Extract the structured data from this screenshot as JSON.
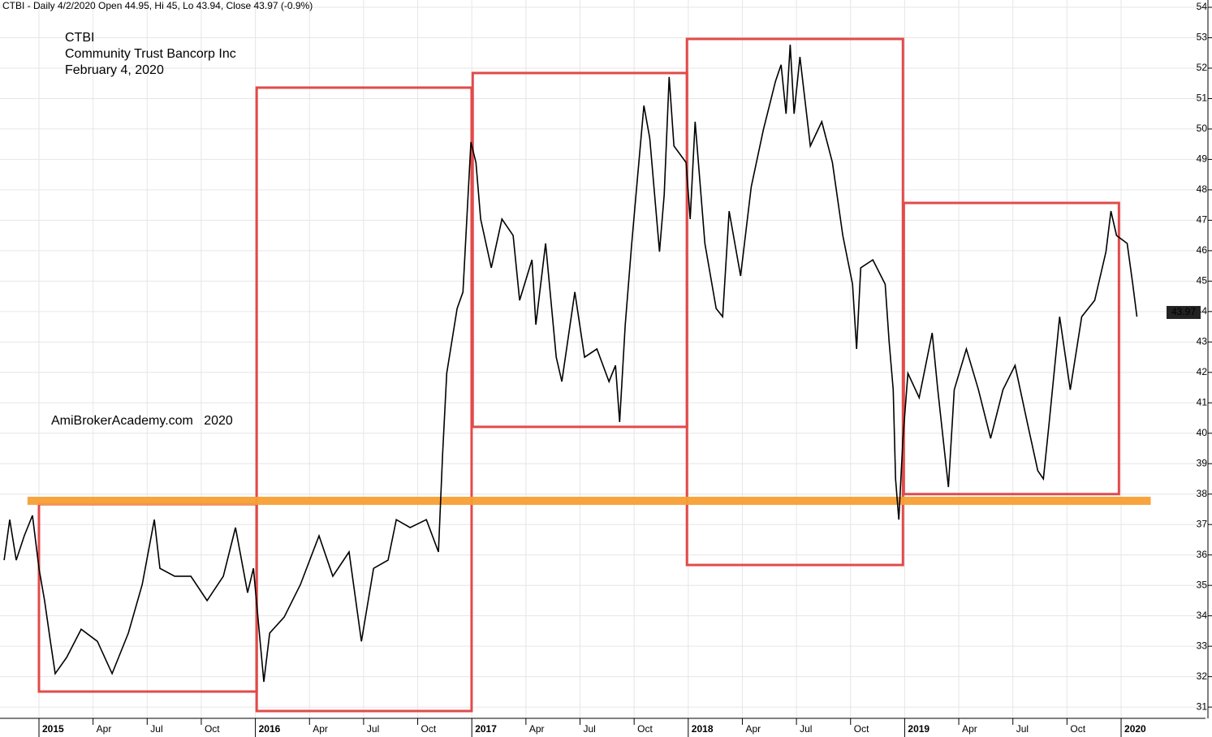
{
  "chart_data": {
    "type": "line",
    "header": "CTBI - Daily 4/2/2020 Open 44.95, Hi 45, Lo 43.94, Close 43.97 (-0.9%)",
    "annotations": [
      "CTBI",
      "Community Trust Bancorp Inc",
      "February 4, 2020"
    ],
    "watermark": "AmiBrokerAcademy.com   2020",
    "annotation_color": "#e0403f",
    "color": "#000000",
    "x": [
      2014.839,
      2014.865,
      2014.895,
      2014.932,
      2014.97,
      2015.0,
      2015.026,
      2015.053,
      2015.075,
      2015.128,
      2015.195,
      2015.27,
      2015.338,
      2015.413,
      2015.477,
      2015.533,
      2015.559,
      2015.627,
      2015.702,
      2015.777,
      2015.852,
      2015.908,
      2015.964,
      2015.991,
      2016.039,
      2016.066,
      2016.133,
      2016.208,
      2016.294,
      2016.358,
      2016.433,
      2016.49,
      2016.546,
      2016.613,
      2016.651,
      2016.715,
      2016.79,
      2016.846,
      2016.865,
      2016.884,
      2016.932,
      2016.959,
      2016.981,
      2016.996,
      2017.019,
      2017.041,
      2017.09,
      2017.139,
      2017.191,
      2017.221,
      2017.278,
      2017.296,
      2017.341,
      2017.39,
      2017.416,
      2017.476,
      2017.521,
      2017.578,
      2017.634,
      2017.664,
      2017.683,
      2017.709,
      2017.739,
      2017.765,
      2017.795,
      2017.822,
      2017.867,
      2017.889,
      2017.912,
      2017.934,
      2017.99,
      2018.009,
      2018.032,
      2018.077,
      2018.129,
      2018.159,
      2018.189,
      2018.242,
      2018.291,
      2018.347,
      2018.403,
      2018.429,
      2018.452,
      2018.471,
      2018.489,
      2018.516,
      2018.564,
      2018.617,
      2018.666,
      2018.714,
      2018.759,
      2018.778,
      2018.797,
      2018.853,
      2018.91,
      2018.928,
      2018.947,
      2018.958,
      2018.973,
      2018.992,
      2019.015,
      2019.067,
      2019.127,
      2019.153,
      2019.202,
      2019.229,
      2019.285,
      2019.341,
      2019.397,
      2019.454,
      2019.51,
      2019.566,
      2019.615,
      2019.641,
      2019.668,
      2019.716,
      2019.765,
      2019.818,
      2019.878,
      2019.93,
      2019.953,
      2019.979,
      2020.028,
      2020.054,
      2020.073
    ],
    "values": [
      35.83,
      37.16,
      35.83,
      36.63,
      37.3,
      35.56,
      34.5,
      33.16,
      32.1,
      32.63,
      33.56,
      33.16,
      32.1,
      33.43,
      35.03,
      37.16,
      35.56,
      35.3,
      35.3,
      34.5,
      35.3,
      36.9,
      34.76,
      35.56,
      31.83,
      33.43,
      33.96,
      35.03,
      36.63,
      35.3,
      36.1,
      33.16,
      35.56,
      35.83,
      37.16,
      36.9,
      37.16,
      36.1,
      39.3,
      41.97,
      44.1,
      44.64,
      47.57,
      49.57,
      48.9,
      47.04,
      45.44,
      47.04,
      46.5,
      44.37,
      45.7,
      43.57,
      46.24,
      42.5,
      41.7,
      44.64,
      42.5,
      42.77,
      41.7,
      42.23,
      40.37,
      43.57,
      46.24,
      48.37,
      50.77,
      49.7,
      45.97,
      47.84,
      51.71,
      49.44,
      48.9,
      47.04,
      50.24,
      46.24,
      44.1,
      43.83,
      47.3,
      45.17,
      48.1,
      49.97,
      51.57,
      52.11,
      50.5,
      52.77,
      50.5,
      52.37,
      49.44,
      50.24,
      48.9,
      46.5,
      44.9,
      42.77,
      45.44,
      45.7,
      44.9,
      43.03,
      41.43,
      38.5,
      37.16,
      39.83,
      41.97,
      41.17,
      43.3,
      41.43,
      38.23,
      41.43,
      42.77,
      41.43,
      39.83,
      41.43,
      42.23,
      40.37,
      38.77,
      38.5,
      40.37,
      43.83,
      41.43,
      43.83,
      44.37,
      45.97,
      47.3,
      46.5,
      46.24,
      44.9,
      43.83
    ],
    "last_value": 43.97,
    "boxes": [
      {
        "x": [
          2015.0,
          2016.006
        ],
        "y": [
          31.51,
          37.67
        ]
      },
      {
        "x": [
          2016.006,
          2016.999
        ],
        "y": [
          30.87,
          51.36
        ]
      },
      {
        "x": [
          2017.004,
          2017.994
        ],
        "y": [
          40.21,
          51.84
        ]
      },
      {
        "x": [
          2017.994,
          2018.992
        ],
        "y": [
          35.67,
          52.96
        ]
      },
      {
        "x": [
          2018.996,
          2019.99
        ],
        "y": [
          38.0,
          47.57
        ]
      }
    ],
    "box_color": "#e24a4a",
    "hline": {
      "value": 37.78,
      "x": [
        2014.947,
        2020.137
      ],
      "color": "#f7a035"
    },
    "xlim": [
      2014.82,
      2020.39
    ],
    "ylim": [
      30.63,
      54.24
    ],
    "xticks": [
      {
        "value": 2015,
        "label": "2015"
      },
      {
        "value": 2015.25,
        "label": "Apr"
      },
      {
        "value": 2015.5,
        "label": "Jul"
      },
      {
        "value": 2015.75,
        "label": "Oct"
      },
      {
        "value": 2016,
        "label": "2016"
      },
      {
        "value": 2016.25,
        "label": "Apr"
      },
      {
        "value": 2016.5,
        "label": "Jul"
      },
      {
        "value": 2016.75,
        "label": "Oct"
      },
      {
        "value": 2017,
        "label": "2017"
      },
      {
        "value": 2017.25,
        "label": "Apr"
      },
      {
        "value": 2017.5,
        "label": "Jul"
      },
      {
        "value": 2017.75,
        "label": "Oct"
      },
      {
        "value": 2018,
        "label": "2018"
      },
      {
        "value": 2018.25,
        "label": "Apr"
      },
      {
        "value": 2018.5,
        "label": "Jul"
      },
      {
        "value": 2018.75,
        "label": "Oct"
      },
      {
        "value": 2019,
        "label": "2019"
      },
      {
        "value": 2019.25,
        "label": "Apr"
      },
      {
        "value": 2019.5,
        "label": "Jul"
      },
      {
        "value": 2019.75,
        "label": "Oct"
      },
      {
        "value": 2020,
        "label": "2020"
      }
    ],
    "yticks": [
      31,
      32,
      33,
      34,
      35,
      36,
      37,
      38,
      39,
      40,
      41,
      42,
      43,
      44,
      45,
      46,
      47,
      48,
      49,
      50,
      51,
      52,
      53,
      54
    ],
    "grid": true
  }
}
